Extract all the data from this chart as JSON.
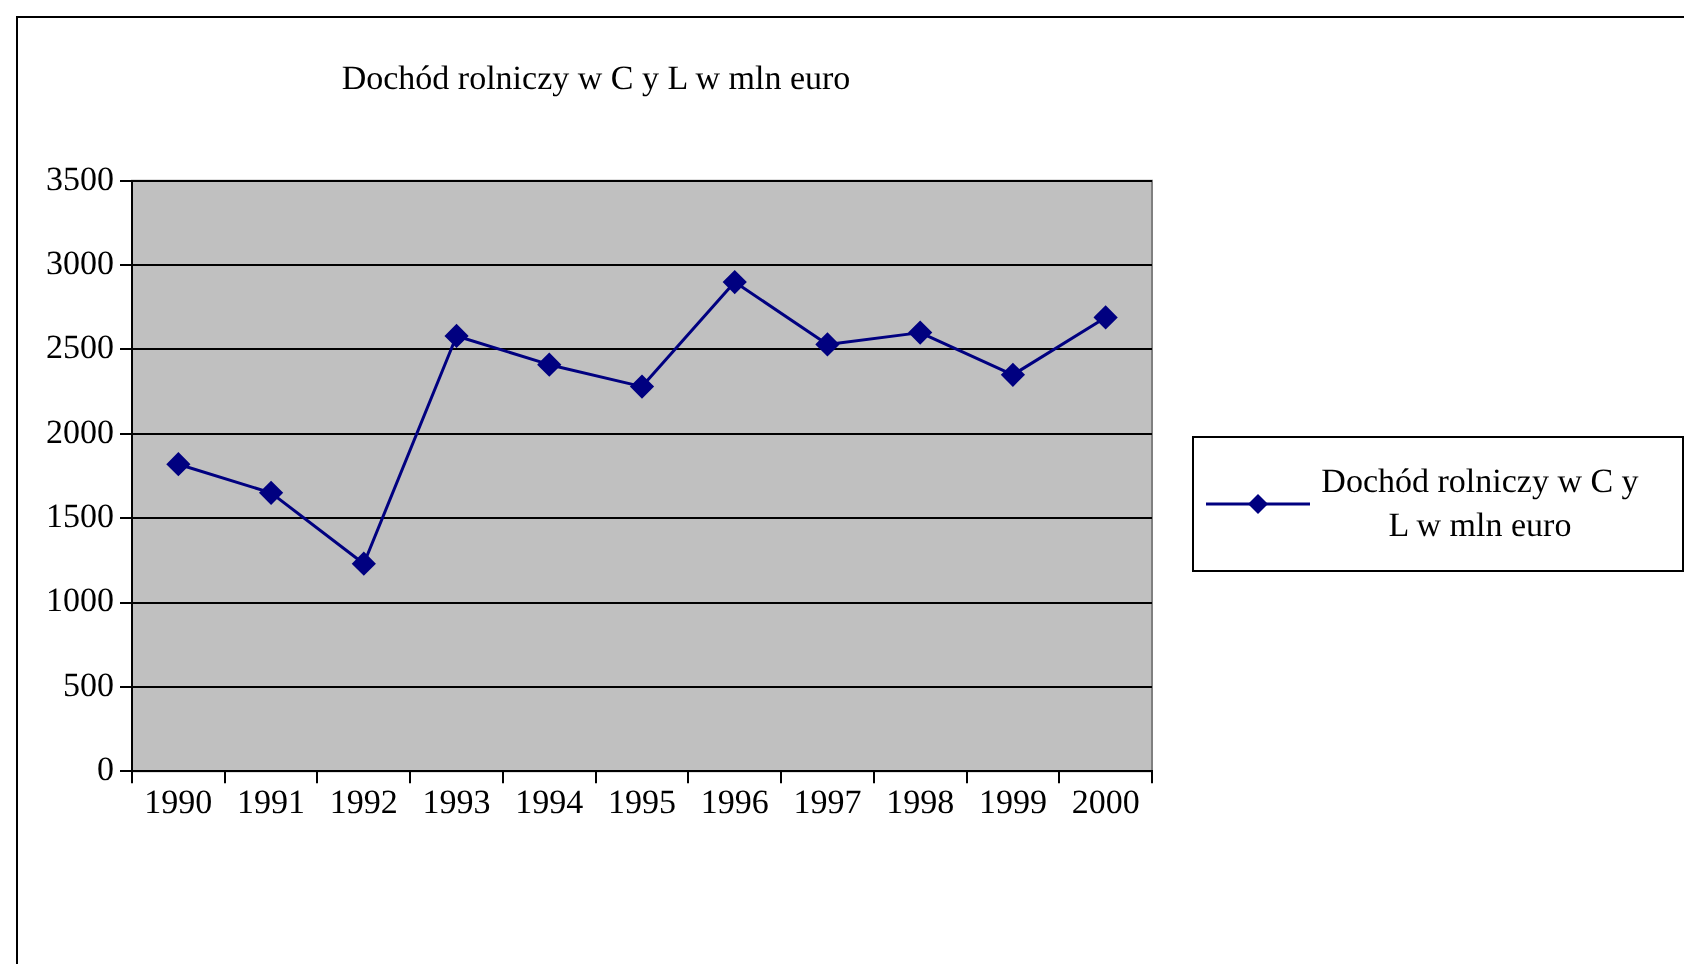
{
  "chart_data": {
    "type": "line",
    "title": "Dochód rolniczy w C y L w mln euro",
    "categories": [
      "1990",
      "1991",
      "1992",
      "1993",
      "1994",
      "1995",
      "1996",
      "1997",
      "1998",
      "1999",
      "2000"
    ],
    "series": [
      {
        "name": "Dochód rolniczy w C y L w mln euro",
        "color": "#000080",
        "values": [
          1820,
          1650,
          1230,
          2580,
          2410,
          2280,
          2900,
          2530,
          2600,
          2350,
          2690
        ]
      }
    ],
    "ylim": [
      0,
      3500
    ],
    "yticks": [
      0,
      500,
      1000,
      1500,
      2000,
      2500,
      3000,
      3500
    ],
    "grid": "y",
    "legend": "right",
    "marker": "diamond",
    "line_style": "solid"
  }
}
